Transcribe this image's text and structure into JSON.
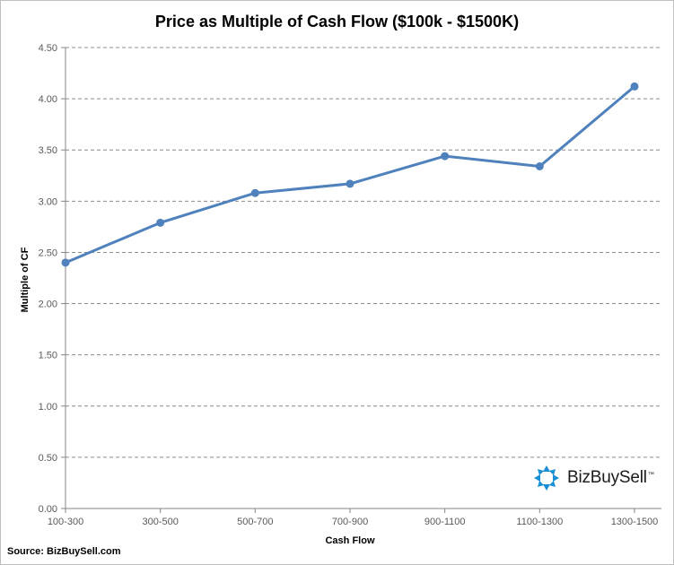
{
  "chart_data": {
    "type": "line",
    "title": "Price as Multiple of Cash Flow ($100k - $1500K)",
    "xlabel": "Cash Flow",
    "ylabel": "Multiple of CF",
    "categories": [
      "100-300",
      "300-500",
      "500-700",
      "700-900",
      "900-1100",
      "1100-1300",
      "1300-1500"
    ],
    "series": [
      {
        "name": "Multiple of CF",
        "values": [
          2.4,
          2.79,
          3.08,
          3.17,
          3.44,
          3.34,
          4.12
        ],
        "color": "#4f81bd"
      }
    ],
    "ylim": [
      0,
      4.5
    ],
    "yticks": [
      0.0,
      0.5,
      1.0,
      1.5,
      2.0,
      2.5,
      3.0,
      3.5,
      4.0,
      4.5
    ],
    "ytick_labels": [
      "0.00",
      "0.50",
      "1.00",
      "1.50",
      "2.00",
      "2.50",
      "3.00",
      "3.50",
      "4.00",
      "4.50"
    ],
    "grid": "horizontal-dashed",
    "legend": "none"
  },
  "source": "Source: BizBuySell.com",
  "logo": {
    "name": "BizBuySell",
    "trademark": "™",
    "color": "#1a8fd6"
  }
}
